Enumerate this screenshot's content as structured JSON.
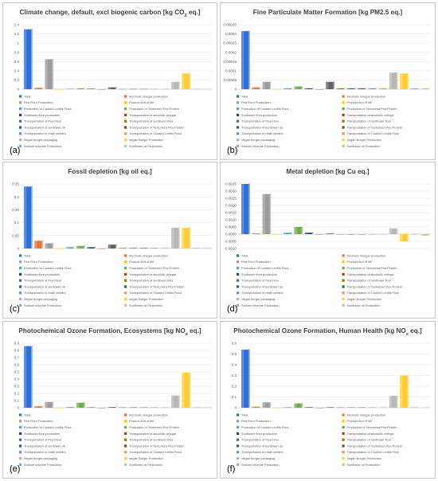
{
  "legend_entries": [
    "Total",
    "Alcoholic vinegar production",
    "Pea Flour Production",
    "Product end of life",
    "Production of Cooked Lentils Flour",
    "Production of Texturized Pea Protein",
    "Sunflower flour production",
    "Transportation of alcoholic vinegar",
    "Transportation of Pea Flour",
    "Transportation of sunflower flour",
    "Transportation of sunflower oil",
    "Transportation of Texturized Pea Protein",
    "Transportation to retail centers",
    "Transportation of Cooked Lentils Flour",
    "Vegan burger packaging",
    "Vegan Burger Production",
    "Sodium chloride Production",
    "Sunflower oil Production"
  ],
  "series_colors": [
    "#2e6fd9",
    "#e8743b",
    "#9c9c9c",
    "#ffc000",
    "#5b9bd5",
    "#70ad47",
    "#264478",
    "#9e480e",
    "#636363",
    "#997300",
    "#255e91",
    "#43682b",
    "#698ed0",
    "#f1975a",
    "#b7b7b7",
    "#ffcd33",
    "#8faadc",
    "#a9d18e"
  ],
  "chart_data": [
    {
      "type": "bar",
      "panel_label": "(a)",
      "title_main": "Climate change, default, excl biogenic carbon [kg CO",
      "title_sub": "2",
      "title_end": " eq.]",
      "ylim": [
        0,
        1.4
      ],
      "yticks": [
        "0",
        "0.2",
        "0.4",
        "0.6",
        "0.8",
        "1",
        "1.2",
        "1.4"
      ],
      "values": [
        1.3,
        0.03,
        0.65,
        0.0,
        0.01,
        0.02,
        0.01,
        0.0,
        0.04,
        0.005,
        0.005,
        0.005,
        0.005,
        0.005,
        0.16,
        0.34,
        0.005,
        0.005
      ]
    },
    {
      "type": "bar",
      "panel_label": "(b)",
      "title_main": "Fine Particulate Matter Formation [kg PM2.5 eq.]",
      "title_sub": "",
      "title_end": "",
      "ylim": [
        0,
        0.00035
      ],
      "yticks": [
        "0",
        "0.00005",
        "0.0001",
        "0.00015",
        "0.0002",
        "0.00025",
        "0.0003",
        "0.00035"
      ],
      "values": [
        0.000315,
        1e-05,
        4e-05,
        0.0,
        5e-06,
        1.5e-05,
        5e-06,
        0.0,
        4e-05,
        5e-06,
        5e-06,
        5e-06,
        5e-06,
        5e-06,
        9e-05,
        8.5e-05,
        5e-06,
        5e-06
      ]
    },
    {
      "type": "bar",
      "panel_label": "(c)",
      "title_main": "Fossil depletion [kg oil eq.]",
      "title_sub": "",
      "title_end": "",
      "ylim": [
        0,
        0.25
      ],
      "yticks": [
        "0",
        "0.05",
        "0.1",
        "0.15",
        "0.2",
        "0.25"
      ],
      "values": [
        0.24,
        0.03,
        0.02,
        0.0,
        0.005,
        0.01,
        0.005,
        0.0,
        0.015,
        0.002,
        0.002,
        0.002,
        0.002,
        0.002,
        0.08,
        0.08,
        0.002,
        0.002
      ]
    },
    {
      "type": "bar",
      "panel_label": "(d)",
      "title_main": "Metal depletion [kg Cu eq.]",
      "title_sub": "",
      "title_end": "",
      "ylim": [
        -0.001,
        0.0035
      ],
      "yticks": [
        "-0.0010",
        "-0.0005",
        "0.0000",
        "0.0005",
        "0.0010",
        "0.0015",
        "0.0020",
        "0.0025",
        "0.0030",
        "0.0035"
      ],
      "values": [
        0.0035,
        5e-05,
        0.0028,
        0.0,
        0.0001,
        0.0005,
        0.0001,
        0.0,
        5e-05,
        0.0,
        0.0,
        0.0,
        0.0,
        0.0,
        0.0004,
        -0.0005,
        0.0,
        -0.0001
      ]
    },
    {
      "type": "bar",
      "panel_label": "(e)",
      "title_main": "Photochemical Ozone Formation, Ecosystems [kg NO",
      "title_sub": "x",
      "title_end": " eq.]",
      "ylim": [
        0,
        0.9
      ],
      "yticks": [
        "0",
        "0.1",
        "0.2",
        "0.3",
        "0.4",
        "0.5",
        "0.6",
        "0.7",
        "0.8",
        "0.9"
      ],
      "values": [
        0.86,
        0.02,
        0.08,
        0.0,
        0.01,
        0.07,
        0.005,
        0.0,
        0.01,
        0.005,
        0.005,
        0.005,
        0.005,
        0.005,
        0.17,
        0.49,
        0.005,
        0.005
      ]
    },
    {
      "type": "bar",
      "panel_label": "(f)",
      "title_main": "Photochemical Ozone Formation, Human Health [kg NO",
      "title_sub": "x",
      "title_end": " eq.]",
      "ylim": [
        0,
        0.6
      ],
      "yticks": [
        "0",
        "0.1",
        "0.2",
        "0.3",
        "0.4",
        "0.5",
        "0.6"
      ],
      "values": [
        0.54,
        0.01,
        0.05,
        0.0,
        0.005,
        0.04,
        0.005,
        0.0,
        0.005,
        0.003,
        0.003,
        0.003,
        0.003,
        0.003,
        0.11,
        0.3,
        0.003,
        0.003
      ]
    }
  ]
}
